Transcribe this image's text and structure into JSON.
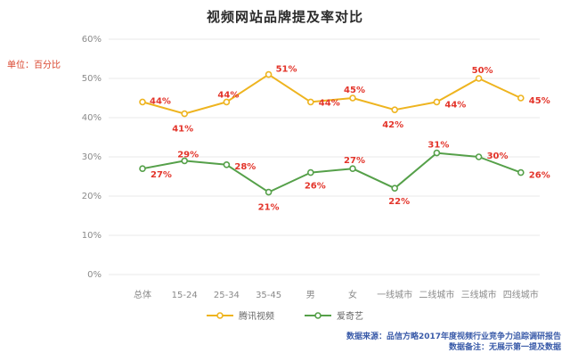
{
  "title": "视频网站品牌提及率对比",
  "unit_label": "单位：百分比",
  "footnotes": {
    "source": "数据来源：品信方略2017年度视频行业竞争力追踪调研报告",
    "note": "数据备注：无展示第一提及数据"
  },
  "colors": {
    "title": "#2b2b2b",
    "unit_label": "#d9442c",
    "axis_text": "#8a8a8a",
    "gridline": "#e8e8e8",
    "data_label": "#e3342a",
    "footnote": "#3a5ba9",
    "series_tencent": "#eeb41f",
    "series_iqiyi": "#55a049"
  },
  "chart_data": {
    "type": "line",
    "title": "视频网站品牌提及率对比",
    "categories": [
      "总体",
      "15-24",
      "25-34",
      "35-45",
      "男",
      "女",
      "一线城市",
      "二线城市",
      "三线城市",
      "四线城市"
    ],
    "series": [
      {
        "name": "腾讯视频",
        "color": "#eeb41f",
        "values": [
          44,
          41,
          44,
          51,
          44,
          45,
          42,
          44,
          50,
          45
        ]
      },
      {
        "name": "爱奇艺",
        "color": "#55a049",
        "values": [
          27,
          29,
          28,
          21,
          26,
          27,
          22,
          31,
          30,
          26
        ]
      }
    ],
    "value_suffix": "%",
    "ylim": [
      0,
      60
    ],
    "ytick_step": 10,
    "grid": true,
    "legend_position": "bottom",
    "xlabel": "",
    "ylabel": "单位：百分比"
  }
}
